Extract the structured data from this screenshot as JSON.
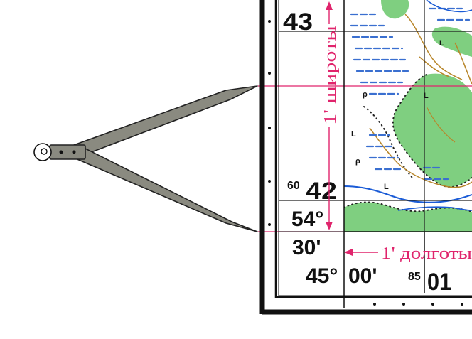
{
  "colors": {
    "frame": "#111111",
    "grid": "#1f1f1f",
    "magenta": "#e0246c",
    "forest": "#7fcf80",
    "swamp": "#3a6fd0",
    "contour": "#b8862a",
    "river": "#1a5bd6",
    "divider_fill": "#8a8a80"
  },
  "map": {
    "northing_top": "43",
    "northing_mid_prefix": "60",
    "northing_mid": "42",
    "lat_degrees": "54°",
    "lat_minutes": "30'",
    "lon_degrees": "45°",
    "lon_minutes": "00'",
    "easting_prefix": "85",
    "easting": "01",
    "label_latitude": "1' широты",
    "label_longitude": "1' долготы",
    "map_letters": [
      "L",
      "L",
      "L",
      "L",
      "ρ",
      "ρ"
    ]
  },
  "icons": [
    "dividers-icon",
    "up-arrow-icon",
    "down-arrow-icon",
    "left-arrow-icon"
  ]
}
